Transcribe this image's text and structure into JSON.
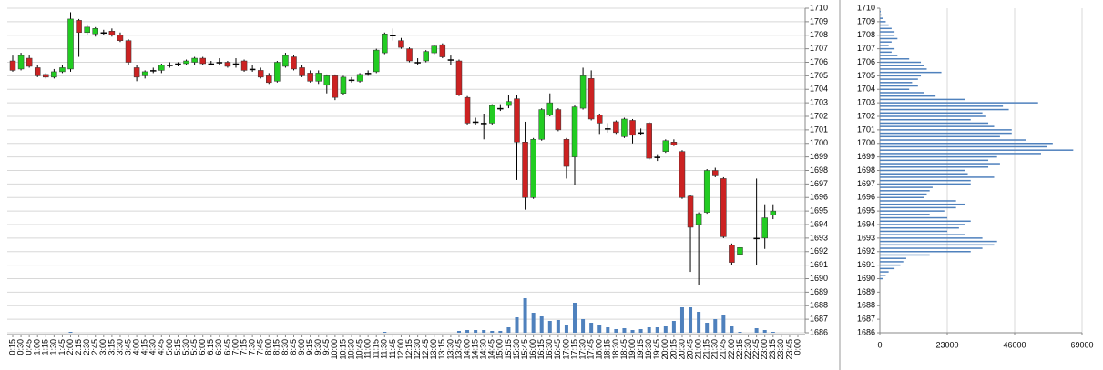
{
  "chart_data": [
    {
      "type": "candlestick",
      "categories": [
        "0:15",
        "0:30",
        "0:45",
        "1:00",
        "1:15",
        "1:30",
        "1:45",
        "2:00",
        "2:15",
        "2:30",
        "2:45",
        "3:00",
        "3:15",
        "3:30",
        "3:45",
        "4:00",
        "4:15",
        "4:30",
        "4:45",
        "5:00",
        "5:15",
        "5:30",
        "5:45",
        "6:00",
        "6:15",
        "6:30",
        "6:45",
        "7:00",
        "7:15",
        "7:30",
        "7:45",
        "8:00",
        "8:15",
        "8:30",
        "8:45",
        "9:00",
        "9:15",
        "9:30",
        "9:45",
        "10:00",
        "10:15",
        "10:30",
        "10:45",
        "11:00",
        "11:15",
        "11:30",
        "11:45",
        "12:00",
        "12:15",
        "12:30",
        "12:45",
        "13:00",
        "13:15",
        "13:30",
        "13:45",
        "14:00",
        "14:15",
        "14:30",
        "14:45",
        "15:00",
        "15:15",
        "15:30",
        "15:45",
        "16:00",
        "16:15",
        "16:30",
        "16:45",
        "17:00",
        "17:15",
        "17:30",
        "17:45",
        "18:00",
        "18:15",
        "18:30",
        "18:45",
        "19:00",
        "19:15",
        "19:30",
        "19:45",
        "20:00",
        "20:15",
        "20:30",
        "20:45",
        "21:00",
        "21:15",
        "21:30",
        "21:45",
        "22:00",
        "22:15",
        "22:30",
        "22:45",
        "23:00",
        "23:15",
        "23:30",
        "23:45",
        "0:00"
      ],
      "open": [
        1706.1,
        1705.5,
        1706.3,
        1705.6,
        1705.1,
        1704.9,
        1705.3,
        1705.5,
        1709.1,
        1708.2,
        1708.1,
        1708.2,
        1708.3,
        1708.0,
        1707.6,
        1705.6,
        1705.0,
        1705.4,
        1705.4,
        1705.8,
        1705.9,
        1705.9,
        1706.0,
        1706.3,
        1705.9,
        1706.0,
        1706.0,
        1705.9,
        1706.1,
        1705.5,
        1705.4,
        1705.0,
        1704.6,
        1705.7,
        1706.4,
        1705.6,
        1705.2,
        1704.6,
        1704.3,
        1705.0,
        1703.7,
        1704.7,
        1704.6,
        1705.2,
        1705.3,
        1706.7,
        1708.0,
        1707.6,
        1707.0,
        1706.0,
        1706.1,
        1706.7,
        1707.3,
        1706.2,
        1706.1,
        1703.4,
        1701.6,
        1701.5,
        1701.5,
        1702.6,
        1702.8,
        1703.3,
        1700.1,
        1696.0,
        1700.3,
        1702.1,
        1702.5,
        1700.3,
        1699.0,
        1702.6,
        1704.8,
        1702.1,
        1701.1,
        1701.6,
        1700.5,
        1701.7,
        1700.8,
        1701.5,
        1699.0,
        1699.4,
        1700.1,
        1699.4,
        1696.1,
        1694.0,
        1694.9,
        1698.0,
        1697.4,
        1692.5,
        1691.8,
        null,
        1693.0,
        1693.0,
        1694.7,
        null,
        null,
        null
      ],
      "high": [
        1706.5,
        1706.7,
        1706.5,
        1705.8,
        1705.2,
        1705.5,
        1705.8,
        1709.7,
        1709.2,
        1708.8,
        1708.6,
        1708.4,
        1708.5,
        1708.2,
        1707.7,
        1705.8,
        1705.4,
        1705.6,
        1705.9,
        1706.0,
        1706.0,
        1706.2,
        1706.4,
        1706.4,
        1706.1,
        1706.3,
        1706.1,
        1706.3,
        1706.2,
        1705.8,
        1705.6,
        1705.2,
        1706.1,
        1706.7,
        1706.5,
        1705.8,
        1705.4,
        1705.4,
        1705.1,
        1705.1,
        1705.0,
        1704.9,
        1705.2,
        1705.4,
        1707.0,
        1708.2,
        1708.5,
        1707.8,
        1707.1,
        1706.3,
        1706.9,
        1707.3,
        1707.4,
        1706.5,
        1706.2,
        1703.5,
        1701.9,
        1702.2,
        1702.9,
        1702.9,
        1703.6,
        1703.6,
        1701.6,
        1700.4,
        1702.6,
        1703.7,
        1702.6,
        1700.4,
        1702.8,
        1705.6,
        1705.4,
        1702.2,
        1701.5,
        1701.7,
        1701.9,
        1701.8,
        1701.1,
        1701.6,
        1699.2,
        1700.3,
        1700.3,
        1699.5,
        1696.2,
        1694.9,
        1698.1,
        1698.2,
        1697.5,
        1692.6,
        1692.4,
        null,
        1697.4,
        1695.5,
        1695.5,
        null,
        null,
        null
      ],
      "low": [
        1705.3,
        1705.4,
        1705.6,
        1704.9,
        1704.8,
        1704.8,
        1705.2,
        1705.3,
        1706.4,
        1708.0,
        1707.9,
        1708.0,
        1707.9,
        1707.5,
        1705.8,
        1704.6,
        1704.8,
        1705.2,
        1705.2,
        1705.6,
        1705.7,
        1705.8,
        1705.8,
        1705.8,
        1705.8,
        1705.8,
        1705.6,
        1705.6,
        1705.3,
        1705.3,
        1704.8,
        1704.4,
        1704.5,
        1705.6,
        1705.4,
        1704.9,
        1704.5,
        1704.4,
        1703.7,
        1703.2,
        1703.6,
        1704.5,
        1704.5,
        1705.0,
        1705.2,
        1706.6,
        1707.6,
        1707.0,
        1706.0,
        1705.8,
        1706.0,
        1706.6,
        1706.3,
        1705.8,
        1703.5,
        1701.4,
        1701.4,
        1700.3,
        1701.4,
        1702.4,
        1702.6,
        1697.3,
        1695.1,
        1695.9,
        1700.2,
        1702.0,
        1700.9,
        1697.4,
        1696.9,
        1702.5,
        1701.7,
        1700.7,
        1700.8,
        1700.7,
        1700.4,
        1700.0,
        1700.6,
        1698.8,
        1698.7,
        1699.3,
        1699.8,
        1695.9,
        1690.5,
        1689.5,
        1694.8,
        1697.5,
        1693.0,
        1691.0,
        1691.7,
        null,
        1691.0,
        1692.2,
        1694.4,
        null,
        null,
        null
      ],
      "close": [
        1705.4,
        1706.5,
        1705.7,
        1705.0,
        1704.9,
        1705.3,
        1705.6,
        1709.2,
        1708.2,
        1708.6,
        1708.5,
        1708.2,
        1708.0,
        1707.6,
        1706.0,
        1704.9,
        1705.3,
        1705.4,
        1705.8,
        1705.8,
        1705.9,
        1706.1,
        1706.3,
        1705.9,
        1705.9,
        1706.0,
        1705.7,
        1705.9,
        1705.4,
        1705.5,
        1704.9,
        1704.5,
        1706.0,
        1706.5,
        1705.5,
        1705.0,
        1704.6,
        1705.2,
        1705.0,
        1703.4,
        1704.9,
        1704.7,
        1705.1,
        1705.2,
        1706.9,
        1708.1,
        1708.0,
        1707.1,
        1706.1,
        1706.0,
        1706.8,
        1707.2,
        1706.4,
        1706.2,
        1703.6,
        1701.5,
        1701.6,
        1701.5,
        1702.8,
        1702.6,
        1703.1,
        1700.1,
        1696.0,
        1700.3,
        1702.5,
        1703.0,
        1701.0,
        1698.3,
        1702.7,
        1705.0,
        1701.8,
        1701.5,
        1701.1,
        1700.8,
        1701.8,
        1700.6,
        1700.8,
        1698.9,
        1699.0,
        1700.2,
        1699.9,
        1696.0,
        1693.8,
        1694.8,
        1698.0,
        1697.6,
        1693.1,
        1691.2,
        1692.3,
        null,
        1693.0,
        1694.5,
        1695.0,
        null,
        null,
        null
      ],
      "volume": [
        0,
        0,
        0,
        0,
        0,
        0,
        0,
        1,
        0,
        0,
        0,
        0,
        0,
        0,
        0,
        0,
        0,
        0,
        0,
        0,
        0,
        0,
        0,
        0,
        0,
        0,
        0,
        0,
        0,
        0,
        0,
        0,
        0,
        0,
        0,
        0,
        0,
        0,
        0,
        0,
        0,
        0,
        0,
        0,
        0,
        1,
        0,
        0,
        0,
        0,
        0,
        0,
        0,
        0,
        2,
        3,
        3,
        3,
        2,
        2,
        6,
        17,
        38,
        22,
        18,
        13,
        14,
        9,
        33,
        15,
        11,
        8,
        6,
        4,
        5,
        3,
        4,
        6,
        6,
        7,
        13,
        28,
        28,
        23,
        11,
        15,
        19,
        7,
        1,
        null,
        5,
        3,
        1,
        null,
        null,
        null
      ],
      "up_color": "#22cc22",
      "down_color": "#cc2222",
      "flat_color": "#000000",
      "volume_color": "#4f81bd",
      "ylim": [
        1686,
        1710
      ],
      "yticks": [
        1686,
        1687,
        1688,
        1689,
        1690,
        1691,
        1692,
        1693,
        1694,
        1695,
        1696,
        1697,
        1698,
        1699,
        1700,
        1701,
        1702,
        1703,
        1704,
        1705,
        1706,
        1707,
        1708,
        1709,
        1710
      ],
      "grid": true
    },
    {
      "type": "hbar",
      "categories": [
        1709.75,
        1709.5,
        1709.25,
        1709,
        1708.75,
        1708.5,
        1708.25,
        1708,
        1707.75,
        1707.5,
        1707.25,
        1707,
        1706.75,
        1706.5,
        1706.25,
        1706,
        1705.75,
        1705.5,
        1705.25,
        1705,
        1704.75,
        1704.5,
        1704.25,
        1704,
        1703.75,
        1703.5,
        1703.25,
        1703,
        1702.75,
        1702.5,
        1702.25,
        1702,
        1701.75,
        1701.5,
        1701.25,
        1701,
        1700.75,
        1700.5,
        1700.25,
        1700,
        1699.75,
        1699.5,
        1699.25,
        1699,
        1698.75,
        1698.5,
        1698.25,
        1698,
        1697.75,
        1697.5,
        1697.25,
        1697,
        1696.75,
        1696.5,
        1696.25,
        1696,
        1695.75,
        1695.5,
        1695.25,
        1695,
        1694.75,
        1694.5,
        1694.25,
        1694,
        1693.75,
        1693.5,
        1693.25,
        1693,
        1692.75,
        1692.5,
        1692.25,
        1692,
        1691.75,
        1691.5,
        1691.25,
        1691,
        1690.75,
        1690.5,
        1690.25,
        1690
      ],
      "values": [
        300,
        500,
        1000,
        2000,
        3000,
        4000,
        5000,
        5000,
        6000,
        4000,
        3000,
        5000,
        4000,
        6000,
        10000,
        14000,
        15000,
        16000,
        21000,
        14000,
        13000,
        11000,
        13000,
        10000,
        15000,
        19000,
        29000,
        54000,
        42000,
        44000,
        35000,
        36000,
        31000,
        37000,
        39000,
        45000,
        45000,
        41000,
        50000,
        59000,
        57000,
        66000,
        55000,
        40000,
        37000,
        41000,
        37000,
        29000,
        30000,
        39000,
        31000,
        31000,
        18000,
        17000,
        16000,
        15000,
        26000,
        29000,
        26000,
        22000,
        17000,
        23000,
        31000,
        29000,
        27000,
        23000,
        29000,
        35000,
        40000,
        39000,
        35000,
        31000,
        17000,
        9000,
        8000,
        7000,
        5000,
        3000,
        2000,
        1000
      ],
      "color": "#4f81bd",
      "xlim": [
        0,
        69000
      ],
      "xticks": [
        0,
        23000,
        46000,
        69000
      ],
      "ylim": [
        1686,
        1710
      ],
      "yticks": [
        1686,
        1687,
        1688,
        1689,
        1690,
        1691,
        1692,
        1693,
        1694,
        1695,
        1696,
        1697,
        1698,
        1699,
        1700,
        1701,
        1702,
        1703,
        1704,
        1705,
        1706,
        1707,
        1708,
        1709,
        1710
      ],
      "grid": true
    }
  ]
}
